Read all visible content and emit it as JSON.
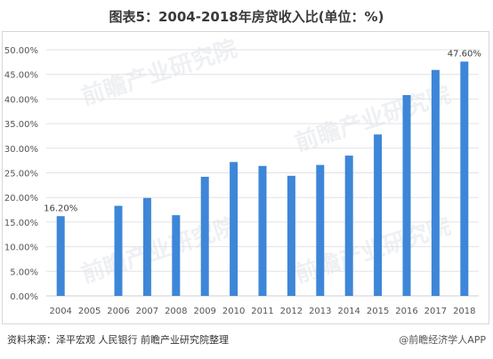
{
  "title": "图表5：2004-2018年房贷收入比(单位：%)",
  "source_text": "资料来源：泽平宏观  人民银行  前瞻产业研究院整理",
  "brand_text": "@前瞻经济学人APP",
  "watermark": "前瞻产业研究院",
  "colors": {
    "bar": "#3e86d8",
    "grid": "#e2e2e2",
    "axis_text": "#555555",
    "label": "#404040"
  },
  "chart_data": {
    "type": "bar",
    "title": "图表5：2004-2018年房贷收入比(单位：%)",
    "categories": [
      "2004",
      "2005",
      "2006",
      "2007",
      "2008",
      "2009",
      "2010",
      "2011",
      "2012",
      "2013",
      "2014",
      "2015",
      "2016",
      "2017",
      "2018"
    ],
    "values": [
      16.2,
      null,
      18.3,
      19.9,
      16.4,
      24.2,
      27.2,
      26.4,
      24.4,
      26.6,
      28.5,
      32.8,
      40.8,
      45.9,
      47.6
    ],
    "data_labels": [
      {
        "category": "2004",
        "text": "16.20%"
      },
      {
        "category": "2018",
        "text": "47.60%"
      }
    ],
    "y_ticks": [
      "0.00%",
      "5.00%",
      "10.00%",
      "15.00%",
      "20.00%",
      "25.00%",
      "30.00%",
      "35.00%",
      "40.00%",
      "45.00%",
      "50.00%"
    ],
    "ylim": [
      0,
      50
    ],
    "xlabel": "",
    "ylabel": "",
    "grid": true,
    "legend": "none"
  }
}
